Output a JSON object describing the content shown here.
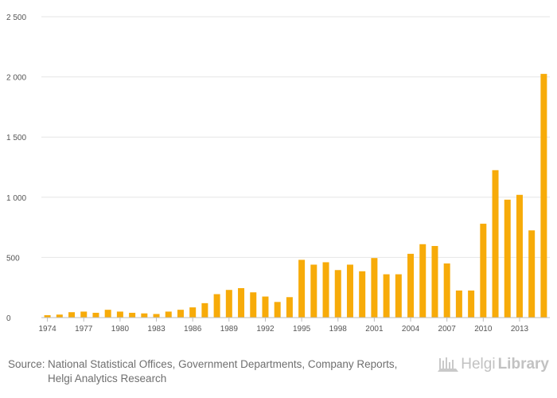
{
  "chart_data": {
    "type": "bar",
    "title": "",
    "xlabel": "",
    "ylabel": "",
    "ylim": [
      0,
      2500
    ],
    "y_ticks": [
      0,
      500,
      1000,
      1500,
      2000,
      2500
    ],
    "y_tick_labels": [
      "0",
      "500",
      "1 000",
      "1 500",
      "2 000",
      "2 500"
    ],
    "x_tick_labels": [
      "1974",
      "1977",
      "1980",
      "1983",
      "1986",
      "1989",
      "1992",
      "1995",
      "1998",
      "2001",
      "2004",
      "2007",
      "2010",
      "2013"
    ],
    "categories": [
      1974,
      1975,
      1976,
      1977,
      1978,
      1979,
      1980,
      1981,
      1982,
      1983,
      1984,
      1985,
      1986,
      1987,
      1988,
      1989,
      1990,
      1991,
      1992,
      1993,
      1994,
      1995,
      1996,
      1997,
      1998,
      1999,
      2000,
      2001,
      2002,
      2003,
      2004,
      2005,
      2006,
      2007,
      2008,
      2009,
      2010,
      2011,
      2012,
      2013,
      2014,
      2015
    ],
    "values": [
      20,
      25,
      45,
      50,
      40,
      65,
      50,
      40,
      35,
      30,
      50,
      65,
      85,
      120,
      195,
      230,
      245,
      210,
      175,
      130,
      170,
      480,
      440,
      460,
      395,
      440,
      385,
      495,
      360,
      360,
      530,
      610,
      595,
      450,
      225,
      225,
      780,
      1225,
      980,
      1020,
      725,
      2025
    ],
    "bar_color": "#f7ab09",
    "grid": true
  },
  "footer": {
    "source_label": "Source:",
    "source_line1": "National Statistical Offices, Government Departments, Company Reports,",
    "source_line2": "Helgi Analytics Research",
    "logo_part1": "Helgi",
    "logo_part2": "Library"
  }
}
